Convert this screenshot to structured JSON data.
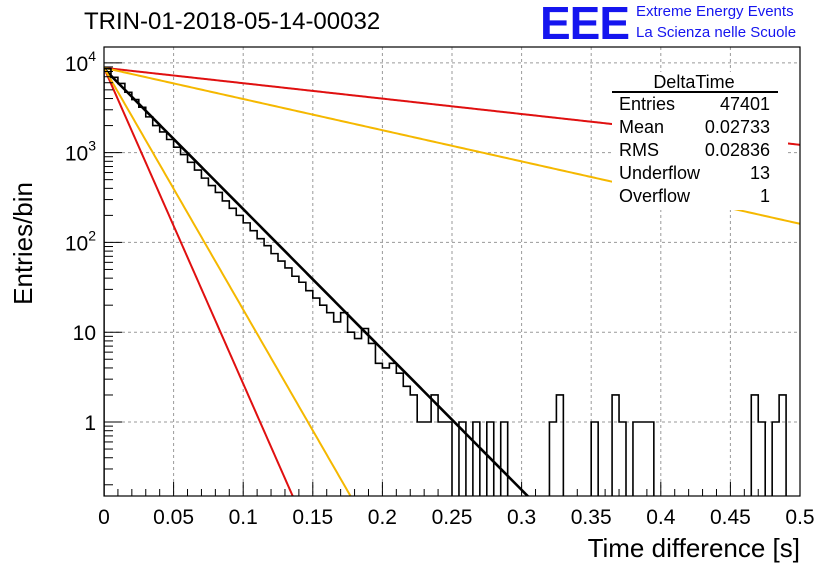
{
  "title": "TRIN-01-2018-05-14-00032",
  "logo": {
    "text": "EEE",
    "line1": "Extreme Energy Events",
    "line2": "La Scienza nelle Scuole",
    "color": "#1515ef"
  },
  "stats_box": {
    "title": "DeltaTime",
    "rows": [
      {
        "label": "Entries",
        "value": "47401"
      },
      {
        "label": "Mean",
        "value": "0.02733"
      },
      {
        "label": "RMS",
        "value": "0.02836"
      },
      {
        "label": "Underflow",
        "value": "13"
      },
      {
        "label": "Overflow",
        "value": "1"
      }
    ]
  },
  "chart_data": {
    "type": "line",
    "title": "TRIN-01-2018-05-14-00032",
    "xlabel": "Time difference [s]",
    "ylabel": "Entries/bin",
    "xlim": [
      0,
      0.5
    ],
    "ylim": [
      0.15,
      15000
    ],
    "yscale": "log",
    "grid": true,
    "xticks": [
      "0",
      "0.05",
      "0.1",
      "0.15",
      "0.2",
      "0.25",
      "0.3",
      "0.35",
      "0.4",
      "0.45",
      "0.5"
    ],
    "yticks": [
      {
        "value": 1,
        "label": "1"
      },
      {
        "value": 10,
        "label": "10"
      },
      {
        "value": 100,
        "label": "10^2"
      },
      {
        "value": 1000,
        "label": "10^3"
      },
      {
        "value": 10000,
        "label": "10^4"
      }
    ],
    "histogram": {
      "bin_width": 0.005,
      "color": "#000000",
      "values": [
        8600,
        6900,
        5900,
        4700,
        3900,
        3200,
        2500,
        2000,
        1700,
        1400,
        1150,
        950,
        780,
        640,
        520,
        430,
        360,
        290,
        240,
        200,
        165,
        135,
        110,
        92,
        75,
        62,
        52,
        42,
        36,
        29,
        24,
        20,
        16.5,
        13,
        16.5,
        10,
        8.5,
        11,
        7.5,
        4.5,
        4,
        4.5,
        3.5,
        2.5,
        2,
        1,
        1,
        2,
        1,
        1,
        0,
        1,
        0,
        1,
        0,
        1,
        0,
        1,
        0,
        0,
        0,
        0,
        0,
        0,
        1,
        2,
        0,
        0,
        0,
        0,
        1,
        0,
        0,
        2,
        1,
        0,
        1,
        1,
        1,
        0,
        0,
        0,
        0,
        0,
        0,
        0,
        0,
        0,
        0,
        0,
        0,
        0,
        0,
        2,
        1,
        0,
        1,
        2,
        0,
        0
      ]
    },
    "series": [
      {
        "amplitude": 8600,
        "decay": 36.0,
        "color": "#000000"
      },
      {
        "amplitude": 8800,
        "decay": 81.0,
        "color": "#e01010"
      },
      {
        "amplitude": 8800,
        "decay": 3.95,
        "color": "#e01010"
      },
      {
        "amplitude": 8800,
        "decay": 62.0,
        "color": "#f5b800"
      },
      {
        "amplitude": 8800,
        "decay": 8.0,
        "color": "#f5b800"
      }
    ]
  }
}
